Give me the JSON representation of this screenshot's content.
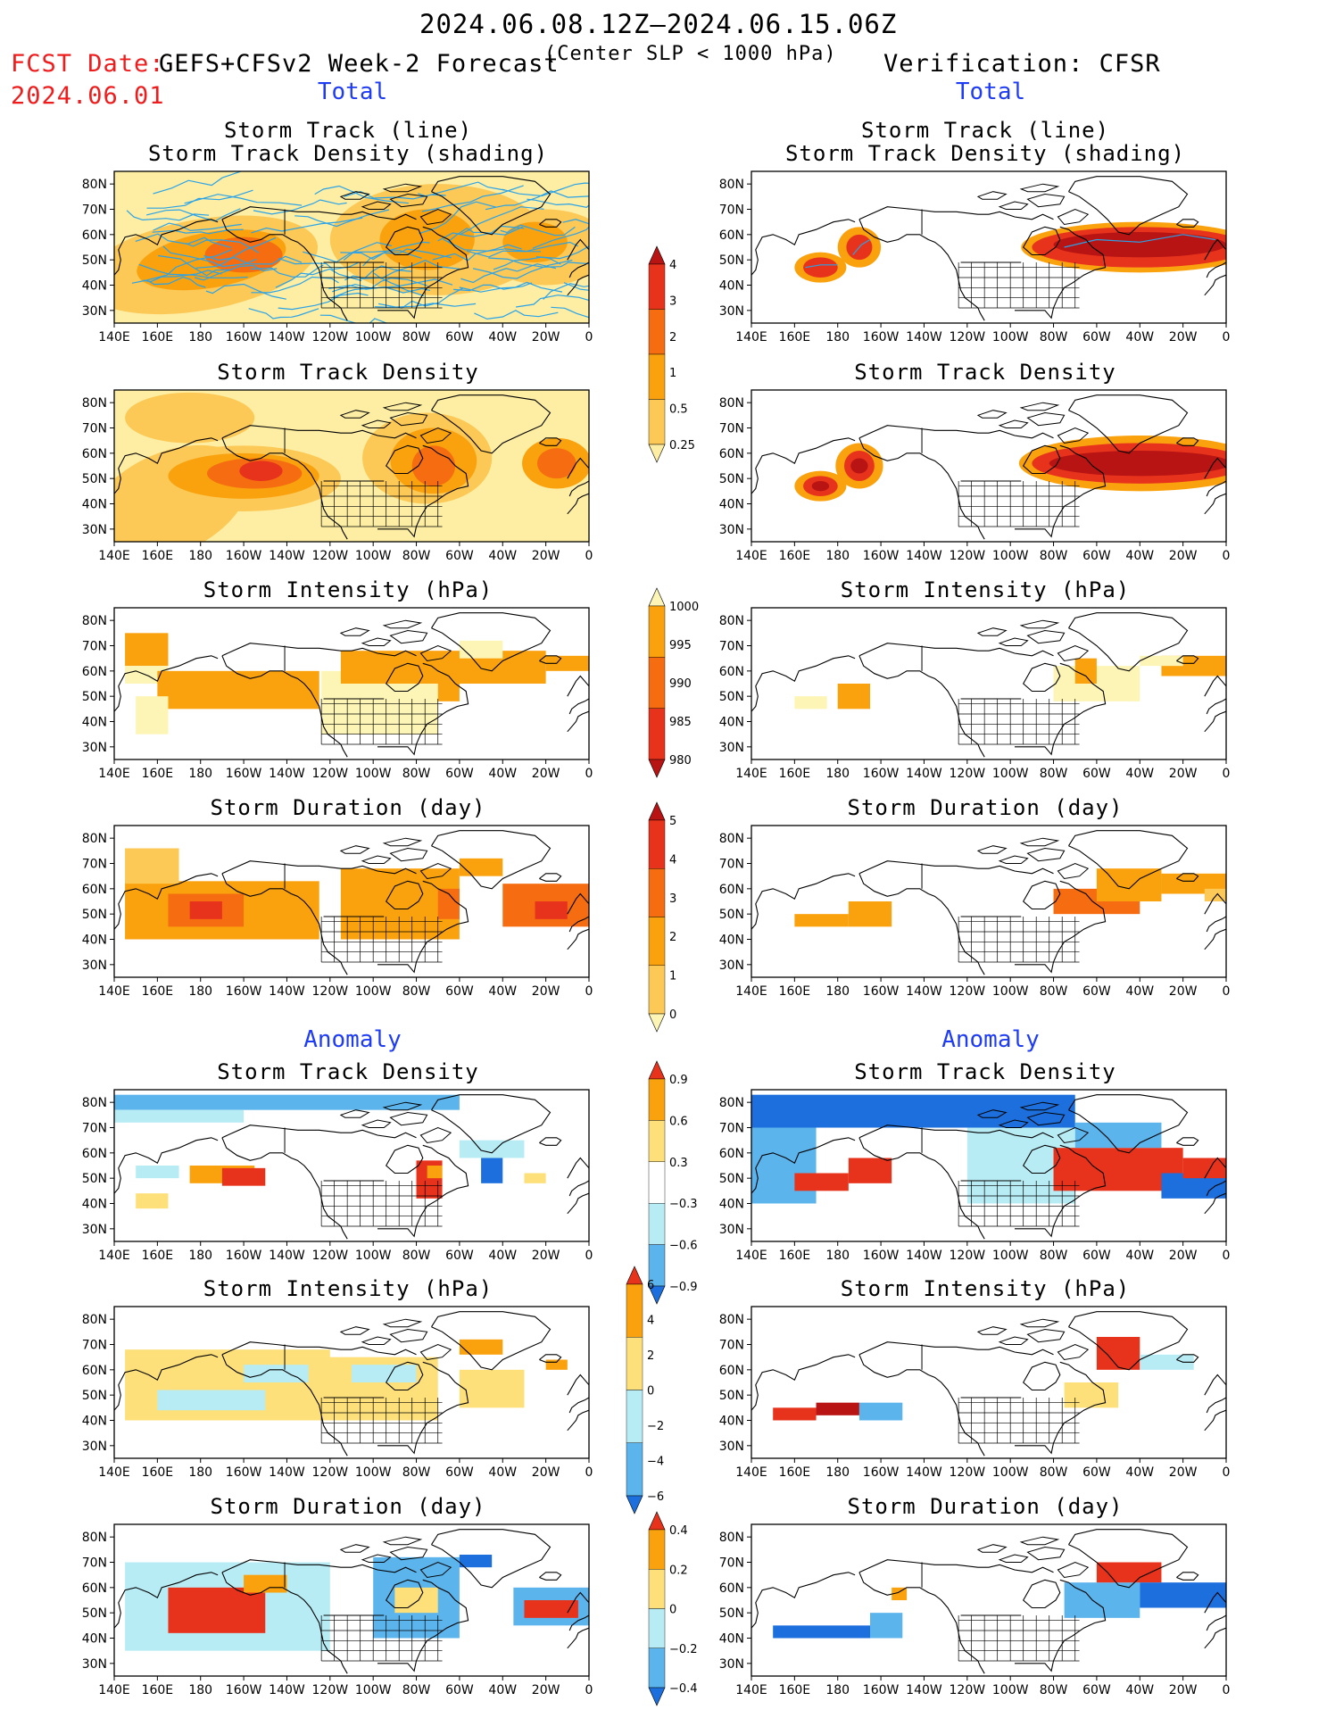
{
  "header": {
    "period": "2024.06.08.12Z–2024.06.15.06Z",
    "fcst_line1": "FCST Date:",
    "fcst_date": "2024.06.01",
    "model": "GEFS+CFSv2 Week-2 Forecast",
    "criterion": "(Center SLP < 1000 hPa)",
    "verification": "Verification: CFSR"
  },
  "sections": {
    "total": "Total",
    "anomaly": "Anomaly"
  },
  "axes": {
    "lat_labels": [
      "80N",
      "70N",
      "60N",
      "50N",
      "40N",
      "30N"
    ],
    "lon_labels": [
      "140E",
      "160E",
      "180",
      "160W",
      "140W",
      "120W",
      "100W",
      "80W",
      "60W",
      "40W",
      "20W",
      "0"
    ]
  },
  "panels": {
    "left": [
      {
        "title1": "Storm Track (line)",
        "title2": "Storm Track Density (shading)"
      },
      {
        "title1": "Storm Track Density",
        "title2": ""
      },
      {
        "title1": "Storm Intensity (hPa)",
        "title2": ""
      },
      {
        "title1": "Storm Duration (day)",
        "title2": ""
      },
      {
        "title1": "Storm Track Density",
        "title2": ""
      },
      {
        "title1": "Storm Intensity (hPa)",
        "title2": ""
      },
      {
        "title1": "Storm Duration (day)",
        "title2": ""
      }
    ],
    "right": [
      {
        "title1": "Storm Track (line)",
        "title2": "Storm Track Density (shading)"
      },
      {
        "title1": "Storm Track Density",
        "title2": ""
      },
      {
        "title1": "Storm Intensity (hPa)",
        "title2": ""
      },
      {
        "title1": "Storm Duration (day)",
        "title2": ""
      },
      {
        "title1": "Storm Track Density",
        "title2": ""
      },
      {
        "title1": "Storm Intensity (hPa)",
        "title2": ""
      },
      {
        "title1": "Storm Duration (day)",
        "title2": ""
      }
    ]
  },
  "colorbars": {
    "density_total": {
      "labels": [
        "4",
        "3",
        "2",
        "1",
        "0.5",
        "0.25"
      ],
      "colors": [
        "#b81414",
        "#e8331c",
        "#f56d10",
        "#f9a20e",
        "#fcc856",
        "#fdeea3"
      ]
    },
    "intensity_total": {
      "labels": [
        "1000",
        "995",
        "990",
        "985",
        "980"
      ],
      "colors": [
        "#fdf5b5",
        "#f9a20e",
        "#f56d10",
        "#e8331c",
        "#b81414"
      ]
    },
    "duration_total": {
      "labels": [
        "5",
        "4",
        "3",
        "2",
        "1",
        "0"
      ],
      "colors": [
        "#b81414",
        "#e8331c",
        "#f56d10",
        "#f9a20e",
        "#fcc856",
        "#fdf5b5"
      ]
    },
    "density_anom": {
      "labels": [
        "0.9",
        "0.6",
        "0.3",
        "−0.3",
        "−0.6",
        "−0.9"
      ],
      "colors": [
        "#e8331c",
        "#f9a20e",
        "#fde07a",
        "#ffffff",
        "#b8ecf5",
        "#5bb4ec",
        "#1c6fdc"
      ]
    },
    "intensity_anom": {
      "labels": [
        "6",
        "4",
        "2",
        "0",
        "−2",
        "−4",
        "−6"
      ],
      "colors": [
        "#e8331c",
        "#f9a20e",
        "#fde07a",
        "#b8ecf5",
        "#5bb4ec",
        "#1c6fdc"
      ]
    },
    "duration_anom": {
      "labels": [
        "0.4",
        "0.2",
        "0",
        "−0.2",
        "−0.4"
      ],
      "colors": [
        "#e8331c",
        "#f9a20e",
        "#fde07a",
        "#b8ecf5",
        "#5bb4ec",
        "#1c6fdc"
      ]
    }
  }
}
